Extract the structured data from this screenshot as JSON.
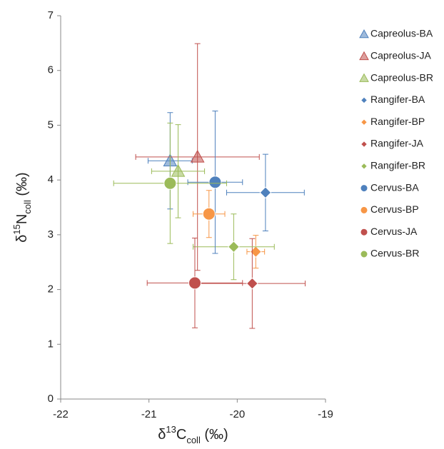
{
  "chart_data": {
    "type": "scatter",
    "x_label": {
      "prefix": "δ",
      "sup": "13",
      "main": "C",
      "sub": "coll",
      "unit": " (‰)"
    },
    "y_label": {
      "prefix": "δ",
      "sup": "15",
      "main": "N",
      "sub": "coll",
      "unit": " (‰)"
    },
    "xlim": [
      -22,
      -19
    ],
    "xticks": [
      -22,
      -21,
      -20,
      -19
    ],
    "ylim": [
      0,
      7
    ],
    "yticks": [
      0,
      1,
      2,
      3,
      4,
      5,
      6,
      7
    ],
    "series": [
      {
        "name": "Capreolus-BA",
        "color": "#4f81bd",
        "marker": "triangle",
        "x": [
          -20.76
        ],
        "values": [
          4.35
        ],
        "xerr": [
          0.25
        ],
        "yerr": [
          0.88
        ]
      },
      {
        "name": "Capreolus-JA",
        "color": "#c0504d",
        "marker": "triangle",
        "x": [
          -20.45
        ],
        "values": [
          4.42
        ],
        "xerr": [
          0.7
        ],
        "yerr": [
          2.07
        ]
      },
      {
        "name": "Capreolus-BR",
        "color": "#9bbb59",
        "marker": "triangle",
        "x": [
          -20.67
        ],
        "values": [
          4.16
        ],
        "xerr": [
          0.3
        ],
        "yerr": [
          0.85
        ]
      },
      {
        "name": "Rangifer-BA",
        "color": "#4f81bd",
        "marker": "diamond",
        "x": [
          -19.68
        ],
        "values": [
          3.77
        ],
        "xerr": [
          0.44
        ],
        "yerr": [
          0.7
        ]
      },
      {
        "name": "Rangifer-BP",
        "color": "#f79646",
        "marker": "diamond",
        "x": [
          -19.79
        ],
        "values": [
          2.69
        ],
        "xerr": [
          0.1
        ],
        "yerr": [
          0.3
        ]
      },
      {
        "name": "Rangifer-JA",
        "color": "#c0504d",
        "marker": "diamond",
        "x": [
          -19.83
        ],
        "values": [
          2.11
        ],
        "xerr": [
          0.6
        ],
        "yerr": [
          0.82
        ]
      },
      {
        "name": "Rangifer-BR",
        "color": "#9bbb59",
        "marker": "diamond",
        "x": [
          -20.04
        ],
        "values": [
          2.78
        ],
        "xerr": [
          0.46
        ],
        "yerr": [
          0.6
        ]
      },
      {
        "name": "Cervus-BA",
        "color": "#4f81bd",
        "marker": "circle",
        "x": [
          -20.25
        ],
        "values": [
          3.96
        ],
        "xerr": [
          0.31
        ],
        "yerr": [
          1.3
        ]
      },
      {
        "name": "Cervus-BP",
        "color": "#f79646",
        "marker": "circle",
        "x": [
          -20.32
        ],
        "values": [
          3.38
        ],
        "xerr": [
          0.18
        ],
        "yerr": [
          0.43
        ]
      },
      {
        "name": "Cervus-JA",
        "color": "#c0504d",
        "marker": "circle",
        "x": [
          -20.48
        ],
        "values": [
          2.12
        ],
        "xerr": [
          0.54
        ],
        "yerr": [
          0.82
        ]
      },
      {
        "name": "Cervus-BR",
        "color": "#9bbb59",
        "marker": "circle",
        "x": [
          -20.76
        ],
        "values": [
          3.94
        ],
        "xerr": [
          0.64
        ],
        "yerr": [
          1.1
        ]
      }
    ]
  }
}
